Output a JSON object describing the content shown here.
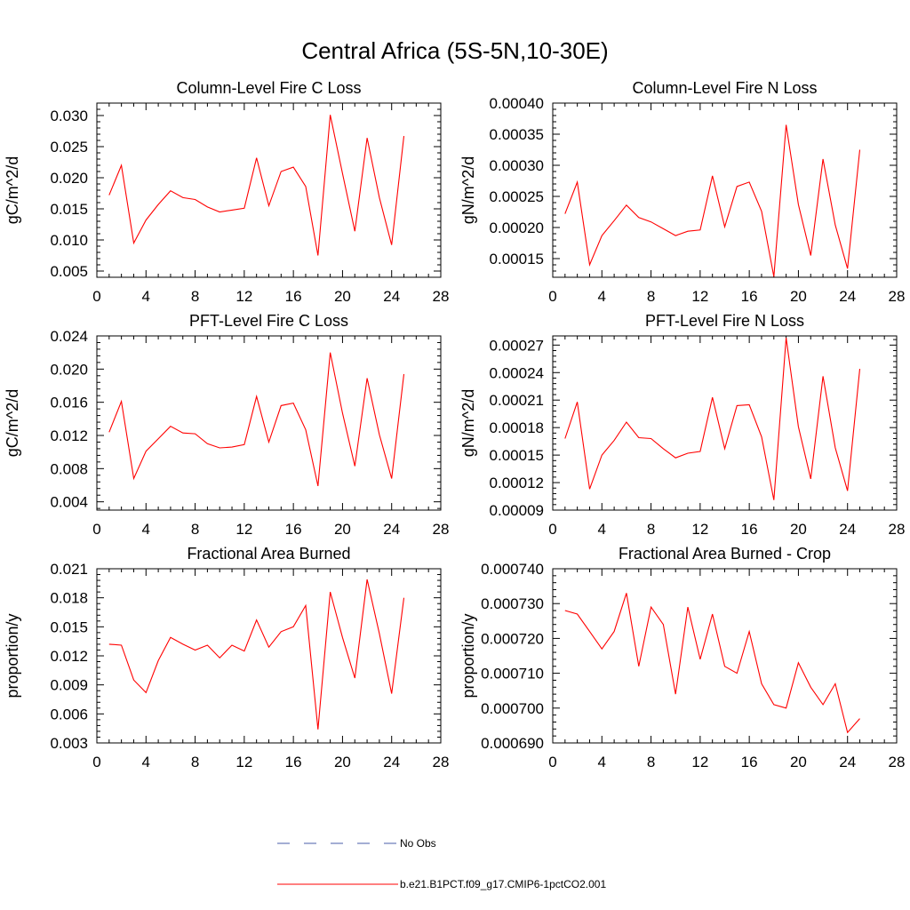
{
  "page_title": "Central Africa (5S-5N,10-30E)",
  "legend": [
    {
      "label": "No Obs",
      "color": "#4a5ca8",
      "style": "dashed"
    },
    {
      "label": "b.e21.B1PCT.f09_g17.CMIP6-1pctCO2.001",
      "color": "#ff0000",
      "style": "solid"
    }
  ],
  "colors": {
    "series": "#ff0000",
    "axis": "#000000"
  },
  "chart_data": [
    {
      "type": "line",
      "title": "Column-Level Fire C Loss",
      "xlabel": "",
      "ylabel": "gC/m^2/d",
      "xlim": [
        0,
        28
      ],
      "ylim": [
        0.004,
        0.032
      ],
      "xticks": [
        0,
        4,
        8,
        12,
        16,
        20,
        24,
        28
      ],
      "xtick_labels": [
        "0",
        "4",
        "8",
        "12",
        "16",
        "20",
        "24",
        "28"
      ],
      "yticks": [
        0.005,
        0.01,
        0.015,
        0.02,
        0.025,
        0.03
      ],
      "ytick_labels": [
        "0.005",
        "0.010",
        "0.015",
        "0.020",
        "0.025",
        "0.030"
      ],
      "x": [
        1,
        2,
        3,
        4,
        5,
        6,
        7,
        8,
        9,
        10,
        11,
        12,
        13,
        14,
        15,
        16,
        17,
        18,
        19,
        20,
        21,
        22,
        23,
        24,
        25
      ],
      "series": [
        {
          "name": "b.e21.B1PCT.f09_g17.CMIP6-1pctCO2.001",
          "values": [
            0.0172,
            0.022,
            0.0095,
            0.0132,
            0.0157,
            0.0179,
            0.0168,
            0.0165,
            0.0153,
            0.0145,
            0.0148,
            0.0151,
            0.0232,
            0.0155,
            0.021,
            0.0217,
            0.0186,
            0.0075,
            0.0301,
            0.0207,
            0.0114,
            0.0264,
            0.0168,
            0.0092,
            0.0267
          ]
        }
      ]
    },
    {
      "type": "line",
      "title": "Column-Level Fire N Loss",
      "xlabel": "",
      "ylabel": "gN/m^2/d",
      "xlim": [
        0,
        28
      ],
      "ylim": [
        0.00012,
        0.0004
      ],
      "xticks": [
        0,
        4,
        8,
        12,
        16,
        20,
        24,
        28
      ],
      "xtick_labels": [
        "0",
        "4",
        "8",
        "12",
        "16",
        "20",
        "24",
        "28"
      ],
      "yticks": [
        0.00015,
        0.0002,
        0.00025,
        0.0003,
        0.00035,
        0.0004
      ],
      "ytick_labels": [
        "0.00015",
        "0.00020",
        "0.00025",
        "0.00030",
        "0.00035",
        "0.00040"
      ],
      "x": [
        1,
        2,
        3,
        4,
        5,
        6,
        7,
        8,
        9,
        10,
        11,
        12,
        13,
        14,
        15,
        16,
        17,
        18,
        19,
        20,
        21,
        22,
        23,
        24,
        25
      ],
      "series": [
        {
          "name": "b.e21.B1PCT.f09_g17.CMIP6-1pctCO2.001",
          "values": [
            0.000222,
            0.000273,
            0.00014,
            0.000187,
            0.000211,
            0.000236,
            0.000216,
            0.000209,
            0.000198,
            0.000187,
            0.000194,
            0.000196,
            0.000283,
            0.000201,
            0.000266,
            0.000273,
            0.000226,
            0.000121,
            0.000365,
            0.000237,
            0.000155,
            0.00031,
            0.000204,
            0.000134,
            0.000325
          ]
        }
      ]
    },
    {
      "type": "line",
      "title": "PFT-Level Fire C Loss",
      "xlabel": "",
      "ylabel": "gC/m^2/d",
      "xlim": [
        0,
        28
      ],
      "ylim": [
        0.003,
        0.024
      ],
      "xticks": [
        0,
        4,
        8,
        12,
        16,
        20,
        24,
        28
      ],
      "xtick_labels": [
        "0",
        "4",
        "8",
        "12",
        "16",
        "20",
        "24",
        "28"
      ],
      "yticks": [
        0.004,
        0.008,
        0.012,
        0.016,
        0.02,
        0.024
      ],
      "ytick_labels": [
        "0.004",
        "0.008",
        "0.012",
        "0.016",
        "0.020",
        "0.024"
      ],
      "x": [
        1,
        2,
        3,
        4,
        5,
        6,
        7,
        8,
        9,
        10,
        11,
        12,
        13,
        14,
        15,
        16,
        17,
        18,
        19,
        20,
        21,
        22,
        23,
        24,
        25
      ],
      "series": [
        {
          "name": "b.e21.B1PCT.f09_g17.CMIP6-1pctCO2.001",
          "values": [
            0.0124,
            0.0161,
            0.0068,
            0.0101,
            0.0116,
            0.0131,
            0.0123,
            0.0122,
            0.011,
            0.0105,
            0.0106,
            0.0109,
            0.0167,
            0.0112,
            0.0156,
            0.0159,
            0.0127,
            0.0059,
            0.022,
            0.0147,
            0.0083,
            0.0189,
            0.0121,
            0.0068,
            0.0194
          ]
        }
      ]
    },
    {
      "type": "line",
      "title": "PFT-Level Fire N Loss",
      "xlabel": "",
      "ylabel": "gN/m^2/d",
      "xlim": [
        0,
        28
      ],
      "ylim": [
        9e-05,
        0.00028
      ],
      "xticks": [
        0,
        4,
        8,
        12,
        16,
        20,
        24,
        28
      ],
      "xtick_labels": [
        "0",
        "4",
        "8",
        "12",
        "16",
        "20",
        "24",
        "28"
      ],
      "yticks": [
        9e-05,
        0.00012,
        0.00015,
        0.00018,
        0.00021,
        0.00024,
        0.00027
      ],
      "ytick_labels": [
        "0.00009",
        "0.00012",
        "0.00015",
        "0.00018",
        "0.00021",
        "0.00024",
        "0.00027"
      ],
      "x": [
        1,
        2,
        3,
        4,
        5,
        6,
        7,
        8,
        9,
        10,
        11,
        12,
        13,
        14,
        15,
        16,
        17,
        18,
        19,
        20,
        21,
        22,
        23,
        24,
        25
      ],
      "series": [
        {
          "name": "b.e21.B1PCT.f09_g17.CMIP6-1pctCO2.001",
          "values": [
            0.000168,
            0.000208,
            0.000113,
            0.00015,
            0.000166,
            0.000186,
            0.000169,
            0.000168,
            0.000157,
            0.000147,
            0.000152,
            0.000154,
            0.000213,
            0.000157,
            0.000204,
            0.000205,
            0.00017,
            0.000101,
            0.000278,
            0.000181,
            0.000124,
            0.000236,
            0.000158,
            0.000111,
            0.000244
          ]
        }
      ]
    },
    {
      "type": "line",
      "title": "Fractional Area Burned",
      "xlabel": "",
      "ylabel": "proportion/y",
      "xlim": [
        0,
        28
      ],
      "ylim": [
        0.003,
        0.021
      ],
      "xticks": [
        0,
        4,
        8,
        12,
        16,
        20,
        24,
        28
      ],
      "xtick_labels": [
        "0",
        "4",
        "8",
        "12",
        "16",
        "20",
        "24",
        "28"
      ],
      "yticks": [
        0.003,
        0.006,
        0.009,
        0.012,
        0.015,
        0.018,
        0.021
      ],
      "ytick_labels": [
        "0.003",
        "0.006",
        "0.009",
        "0.012",
        "0.015",
        "0.018",
        "0.021"
      ],
      "x": [
        1,
        2,
        3,
        4,
        5,
        6,
        7,
        8,
        9,
        10,
        11,
        12,
        13,
        14,
        15,
        16,
        17,
        18,
        19,
        20,
        21,
        22,
        23,
        24,
        25
      ],
      "series": [
        {
          "name": "b.e21.B1PCT.f09_g17.CMIP6-1pctCO2.001",
          "values": [
            0.0132,
            0.0131,
            0.0095,
            0.0082,
            0.0115,
            0.0139,
            0.0132,
            0.0126,
            0.0131,
            0.0118,
            0.0131,
            0.0125,
            0.0157,
            0.0129,
            0.0145,
            0.015,
            0.0172,
            0.0044,
            0.0186,
            0.0139,
            0.0097,
            0.0199,
            0.0143,
            0.0081,
            0.018
          ]
        }
      ]
    },
    {
      "type": "line",
      "title": "Fractional Area Burned - Crop",
      "xlabel": "",
      "ylabel": "proportion/y",
      "xlim": [
        0,
        28
      ],
      "ylim": [
        0.00069,
        0.00074
      ],
      "xticks": [
        0,
        4,
        8,
        12,
        16,
        20,
        24,
        28
      ],
      "xtick_labels": [
        "0",
        "4",
        "8",
        "12",
        "16",
        "20",
        "24",
        "28"
      ],
      "yticks": [
        0.00069,
        0.0007,
        0.00071,
        0.00072,
        0.00073,
        0.00074
      ],
      "ytick_labels": [
        "0.000690",
        "0.000700",
        "0.000710",
        "0.000720",
        "0.000730",
        "0.000740"
      ],
      "x": [
        1,
        2,
        3,
        4,
        5,
        6,
        7,
        8,
        9,
        10,
        11,
        12,
        13,
        14,
        15,
        16,
        17,
        18,
        19,
        20,
        21,
        22,
        23,
        24,
        25
      ],
      "series": [
        {
          "name": "b.e21.B1PCT.f09_g17.CMIP6-1pctCO2.001",
          "values": [
            0.000728,
            0.000727,
            0.000722,
            0.000717,
            0.000722,
            0.000733,
            0.000712,
            0.000729,
            0.000724,
            0.000704,
            0.000729,
            0.000714,
            0.000727,
            0.000712,
            0.00071,
            0.000722,
            0.000707,
            0.000701,
            0.0007,
            0.000713,
            0.000706,
            0.000701,
            0.000707,
            0.000693,
            0.000697
          ]
        }
      ]
    }
  ]
}
